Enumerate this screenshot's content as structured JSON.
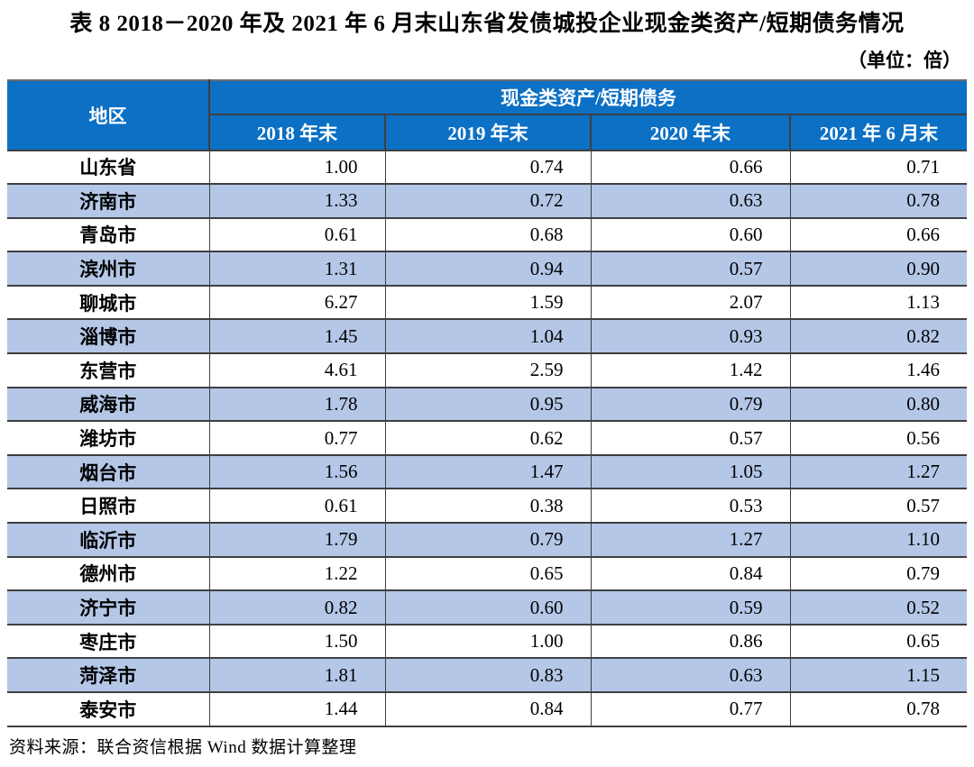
{
  "title": "表 8  2018－2020 年及 2021 年 6 月末山东省发债城投企业现金类资产/短期债务情况",
  "unit_label": "（单位：倍）",
  "table": {
    "region_header": "地区",
    "group_header": "现金类资产/短期债务",
    "period_headers": [
      "2018 年末",
      "2019 年末",
      "2020 年末",
      "2021 年 6 月末"
    ],
    "rows": [
      {
        "region": "山东省",
        "values": [
          "1.00",
          "0.74",
          "0.66",
          "0.71"
        ]
      },
      {
        "region": "济南市",
        "values": [
          "1.33",
          "0.72",
          "0.63",
          "0.78"
        ]
      },
      {
        "region": "青岛市",
        "values": [
          "0.61",
          "0.68",
          "0.60",
          "0.66"
        ]
      },
      {
        "region": "滨州市",
        "values": [
          "1.31",
          "0.94",
          "0.57",
          "0.90"
        ]
      },
      {
        "region": "聊城市",
        "values": [
          "6.27",
          "1.59",
          "2.07",
          "1.13"
        ]
      },
      {
        "region": "淄博市",
        "values": [
          "1.45",
          "1.04",
          "0.93",
          "0.82"
        ]
      },
      {
        "region": "东营市",
        "values": [
          "4.61",
          "2.59",
          "1.42",
          "1.46"
        ]
      },
      {
        "region": "威海市",
        "values": [
          "1.78",
          "0.95",
          "0.79",
          "0.80"
        ]
      },
      {
        "region": "潍坊市",
        "values": [
          "0.77",
          "0.62",
          "0.57",
          "0.56"
        ]
      },
      {
        "region": "烟台市",
        "values": [
          "1.56",
          "1.47",
          "1.05",
          "1.27"
        ]
      },
      {
        "region": "日照市",
        "values": [
          "0.61",
          "0.38",
          "0.53",
          "0.57"
        ]
      },
      {
        "region": "临沂市",
        "values": [
          "1.79",
          "0.79",
          "1.27",
          "1.10"
        ]
      },
      {
        "region": "德州市",
        "values": [
          "1.22",
          "0.65",
          "0.84",
          "0.79"
        ]
      },
      {
        "region": "济宁市",
        "values": [
          "0.82",
          "0.60",
          "0.59",
          "0.52"
        ]
      },
      {
        "region": "枣庄市",
        "values": [
          "1.50",
          "1.00",
          "0.86",
          "0.65"
        ]
      },
      {
        "region": "菏泽市",
        "values": [
          "1.81",
          "0.83",
          "0.63",
          "1.15"
        ]
      },
      {
        "region": "泰安市",
        "values": [
          "1.44",
          "0.84",
          "0.77",
          "0.78"
        ]
      }
    ]
  },
  "source_note": "资料来源：联合资信根据 Wind 数据计算整理",
  "colors": {
    "header_bg": "#0c70c4",
    "header_text": "#ffffff",
    "row_alt_bg": "#b4c7e7",
    "grid_line": "#3f3f3f"
  }
}
